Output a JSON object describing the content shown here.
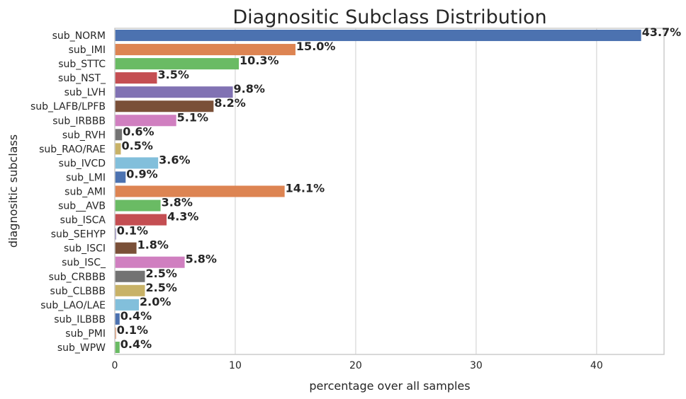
{
  "chart_data": {
    "type": "bar",
    "orientation": "horizontal",
    "title": "Diagnositic Subclass Distribution",
    "xlabel": "percentage over all samples",
    "ylabel": "diagnositic subclass",
    "xlim": [
      0,
      45.6
    ],
    "xticks": [
      0,
      10,
      20,
      30,
      40
    ],
    "grid": true,
    "categories": [
      "sub_NORM",
      "sub_IMI",
      "sub_STTC",
      "sub_NST_",
      "sub_LVH",
      "sub_LAFB/LPFB",
      "sub_IRBBB",
      "sub_RVH",
      "sub_RAO/RAE",
      "sub_IVCD",
      "sub_LMI",
      "sub_AMI",
      "sub__AVB",
      "sub_ISCA",
      "sub_SEHYP",
      "sub_ISCI",
      "sub_ISC_",
      "sub_CRBBB",
      "sub_CLBBB",
      "sub_LAO/LAE",
      "sub_ILBBB",
      "sub_PMI",
      "sub_WPW"
    ],
    "values": [
      43.7,
      15.0,
      10.3,
      3.5,
      9.8,
      8.2,
      5.1,
      0.6,
      0.5,
      3.6,
      0.9,
      14.1,
      3.8,
      4.3,
      0.1,
      1.8,
      5.8,
      2.5,
      2.5,
      2.0,
      0.4,
      0.1,
      0.4
    ],
    "value_labels": [
      "43.7%",
      "15.0%",
      "10.3%",
      "3.5%",
      "9.8%",
      "8.2%",
      "5.1%",
      "0.6%",
      "0.5%",
      "3.6%",
      "0.9%",
      "14.1%",
      "3.8%",
      "4.3%",
      "0.1%",
      "1.8%",
      "5.8%",
      "2.5%",
      "2.5%",
      "2.0%",
      "0.4%",
      "0.1%",
      "0.4%"
    ],
    "palette": [
      "#4c72b0",
      "#dd8452",
      "#6abb64",
      "#c44e52",
      "#8172b3",
      "#7a5038",
      "#d07fc0",
      "#737373",
      "#c8b267",
      "#82bfdb"
    ]
  }
}
